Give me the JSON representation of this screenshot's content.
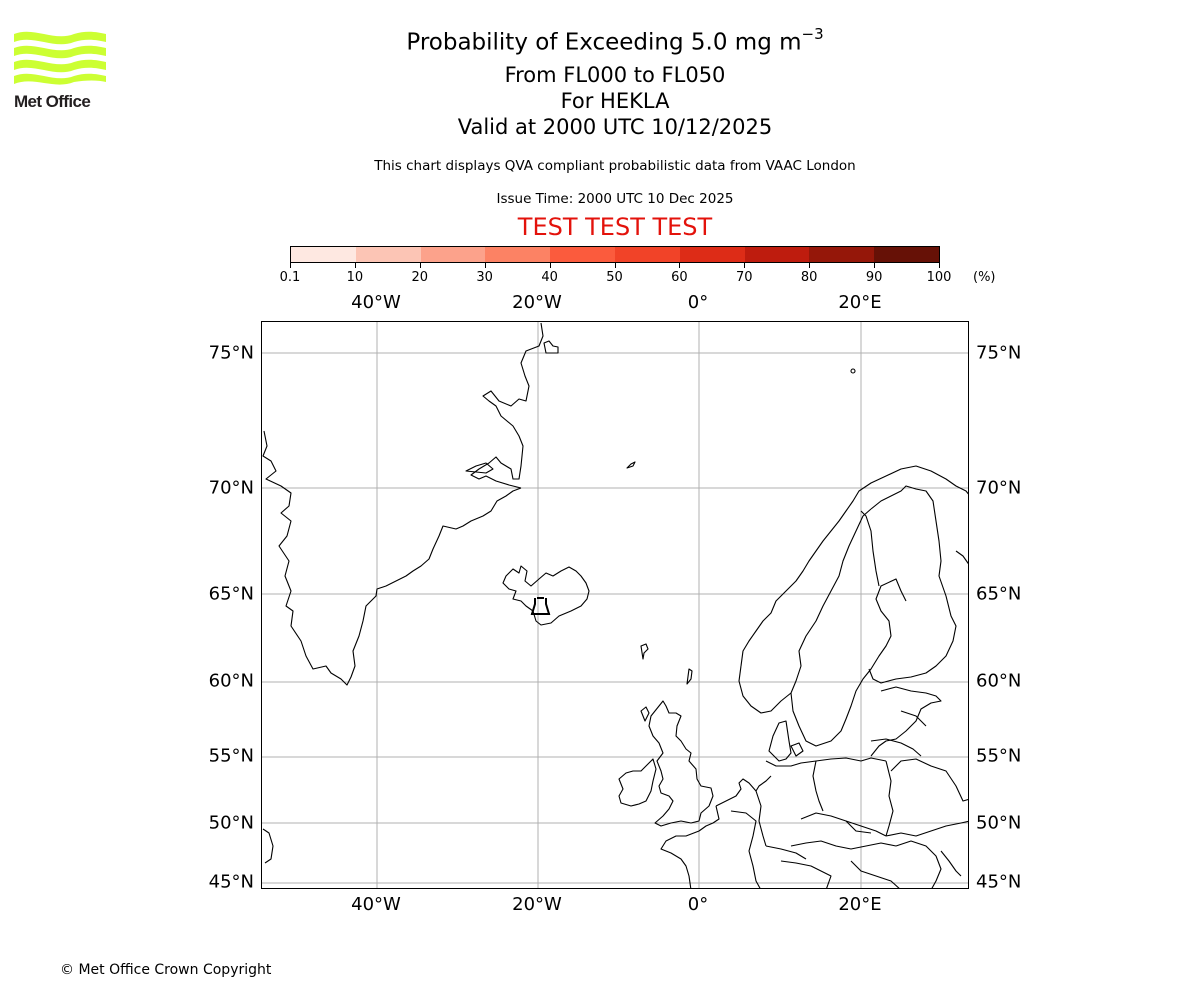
{
  "logo": {
    "text": "Met Office",
    "icon": "met-office-waves-logo",
    "color": "#ccff33"
  },
  "title": {
    "main": "Probability of Exceeding 5.0 mg m",
    "main_superscript": "−3",
    "flight_levels": "From FL000 to FL050",
    "volcano": "For HEKLA",
    "valid": "Valid at 2000 UTC 10/12/2025",
    "description": "This chart displays QVA compliant probabilistic data from VAAC London",
    "issue_time": "Issue Time: 2000 UTC 10 Dec 2025",
    "test_banner": "TEST TEST TEST",
    "test_banner_color": "#e3120b"
  },
  "colorbar": {
    "unit": "(%)",
    "ticks": [
      "0.1",
      "10",
      "20",
      "30",
      "40",
      "50",
      "60",
      "70",
      "80",
      "90",
      "100"
    ],
    "colors": [
      "#fee8e1",
      "#fcc5b5",
      "#fca28b",
      "#fc8264",
      "#fb5b3d",
      "#f14328",
      "#dd2c17",
      "#be1c0e",
      "#951709",
      "#661106"
    ]
  },
  "map": {
    "projection": "Mercator",
    "extent": {
      "lon_min": -54,
      "lon_max": 34,
      "lat_min": 44.7,
      "lat_max": 76.9
    },
    "lon_labels": [
      "40°W",
      "20°W",
      "0°",
      "20°E"
    ],
    "lat_labels": [
      "75°N",
      "70°N",
      "65°N",
      "60°N",
      "55°N",
      "50°N",
      "45°N"
    ],
    "gridline_color": "#b0b0b0",
    "volcano_marker": {
      "name": "HEKLA",
      "icon": "volcano-marker-icon"
    }
  },
  "chart_data": {
    "type": "heatmap",
    "title": "Probability of Exceeding 5.0 mg m−3 — From FL000 to FL050 — For HEKLA — Valid at 2000 UTC 10/12/2025",
    "subtitle": "This chart displays QVA compliant probabilistic data from VAAC London; Issue Time: 2000 UTC 10 Dec 2025",
    "legend": {
      "label": "(%)",
      "bins": [
        [
          0.1,
          10
        ],
        [
          10,
          20
        ],
        [
          20,
          30
        ],
        [
          30,
          40
        ],
        [
          40,
          50
        ],
        [
          50,
          60
        ],
        [
          60,
          70
        ],
        [
          70,
          80
        ],
        [
          80,
          90
        ],
        [
          90,
          100
        ]
      ],
      "position": "top"
    },
    "x_ticks": [
      "40°W",
      "20°W",
      "0°",
      "20°E"
    ],
    "y_ticks": [
      "45°N",
      "50°N",
      "55°N",
      "60°N",
      "65°N",
      "70°N",
      "75°N"
    ],
    "grid": true,
    "values": [],
    "annotations": [
      "TEST TEST TEST",
      "Volcano marker at Hekla, Iceland"
    ]
  },
  "footer": {
    "copyright": "© Met Office Crown Copyright"
  }
}
